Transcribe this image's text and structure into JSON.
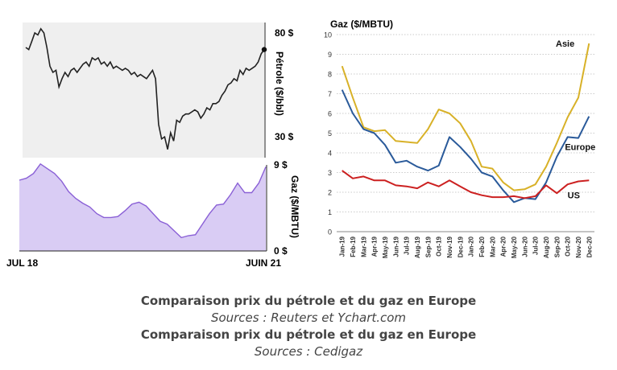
{
  "captions": {
    "title_1": "Comparaison prix du pétrole et du gaz en Europe",
    "source_1": "Sources : Reuters et Ychart.com",
    "title_2": "Comparaison prix du pétrole et du gaz en Europe",
    "source_2": "Sources : Cedigaz"
  },
  "colors": {
    "oil_line": "#222222",
    "oil_fill": "#efefef",
    "gas_line": "#8a60d6",
    "gas_fill": "#d9ccf4",
    "asie": "#d8b128",
    "europe": "#2a5a9a",
    "us": "#cc2020",
    "grid": "#bbbbbb"
  },
  "chart_data": [
    {
      "type": "line",
      "title": "",
      "ylabel": "Pétrole ($/bbl)",
      "x_start_label": "JUL 18",
      "x_end_label": "JUIN 21",
      "y_tick_labels": [
        "80 $",
        "30 $"
      ],
      "ylim": [
        20,
        85
      ],
      "yticks": [
        80,
        30
      ],
      "grid": false,
      "values": [
        73,
        72,
        76,
        80,
        79,
        82,
        80,
        73,
        64,
        61,
        62,
        54,
        58,
        61,
        59,
        62,
        63,
        61,
        63,
        65,
        66,
        64,
        68,
        67,
        68,
        65,
        66,
        64,
        66,
        63,
        64,
        63,
        62,
        63,
        62,
        60,
        61,
        59,
        60,
        59,
        58,
        60,
        62,
        58,
        36,
        29,
        30,
        24,
        32,
        28,
        38,
        37,
        40,
        41,
        41,
        42,
        43,
        42,
        39,
        41,
        44,
        43,
        46,
        46,
        47,
        50,
        52,
        55,
        56,
        58,
        57,
        62,
        60,
        63,
        62,
        63,
        64,
        66,
        70,
        72
      ]
    },
    {
      "type": "area",
      "title": "",
      "ylabel": "Gaz ($/MBTU)",
      "y_tick_labels": [
        "9 $",
        "0 $"
      ],
      "ylim": [
        0,
        9
      ],
      "yticks": [
        9,
        0
      ],
      "grid": false,
      "values": [
        7.4,
        7.6,
        8.1,
        9.1,
        8.6,
        8.1,
        7.3,
        6.2,
        5.5,
        5.0,
        4.6,
        3.9,
        3.5,
        3.5,
        3.6,
        4.2,
        4.9,
        5.1,
        4.7,
        3.9,
        3.1,
        2.8,
        2.1,
        1.4,
        1.6,
        1.7,
        2.8,
        3.9,
        4.8,
        4.9,
        5.9,
        7.1,
        6.1,
        6.1,
        7.1,
        8.8
      ]
    },
    {
      "type": "line",
      "title": "",
      "ylabel": "Gaz ($/MBTU)",
      "ylim": [
        0,
        10
      ],
      "yticks": [
        0,
        1,
        2,
        3,
        4,
        5,
        6,
        7,
        8,
        9,
        10
      ],
      "grid": true,
      "legend": "labels near lines, right",
      "categories": [
        "Jan-19",
        "Feb-19",
        "Mar-19",
        "Apr-19",
        "May-19",
        "Jun-19",
        "Jul-19",
        "Aug-19",
        "Sep-19",
        "Oct-19",
        "Nov-19",
        "Dec-19",
        "Jan-20",
        "Feb-20",
        "Mar-20",
        "Apr-20",
        "May-20",
        "Jun-20",
        "Jul-20",
        "Aug-20",
        "Sep-20",
        "Oct-20",
        "Nov-20",
        "Dec-20"
      ],
      "series": [
        {
          "name": "Asie",
          "values": [
            8.4,
            6.8,
            5.3,
            5.1,
            5.15,
            4.6,
            4.55,
            4.5,
            5.2,
            6.2,
            6.0,
            5.5,
            4.6,
            3.3,
            3.2,
            2.5,
            2.1,
            2.15,
            2.4,
            3.3,
            4.5,
            5.8,
            6.8,
            9.55
          ]
        },
        {
          "name": "Europe",
          "values": [
            7.2,
            6.0,
            5.2,
            5.0,
            4.4,
            3.5,
            3.6,
            3.3,
            3.1,
            3.35,
            4.8,
            4.3,
            3.7,
            3.0,
            2.8,
            2.1,
            1.5,
            1.7,
            1.65,
            2.5,
            3.8,
            4.8,
            4.75,
            5.85
          ]
        },
        {
          "name": "US",
          "values": [
            3.1,
            2.7,
            2.8,
            2.6,
            2.6,
            2.35,
            2.3,
            2.2,
            2.5,
            2.3,
            2.6,
            2.3,
            2.0,
            1.85,
            1.75,
            1.75,
            1.8,
            1.7,
            1.8,
            2.35,
            1.95,
            2.4,
            2.55,
            2.6
          ]
        }
      ]
    }
  ]
}
